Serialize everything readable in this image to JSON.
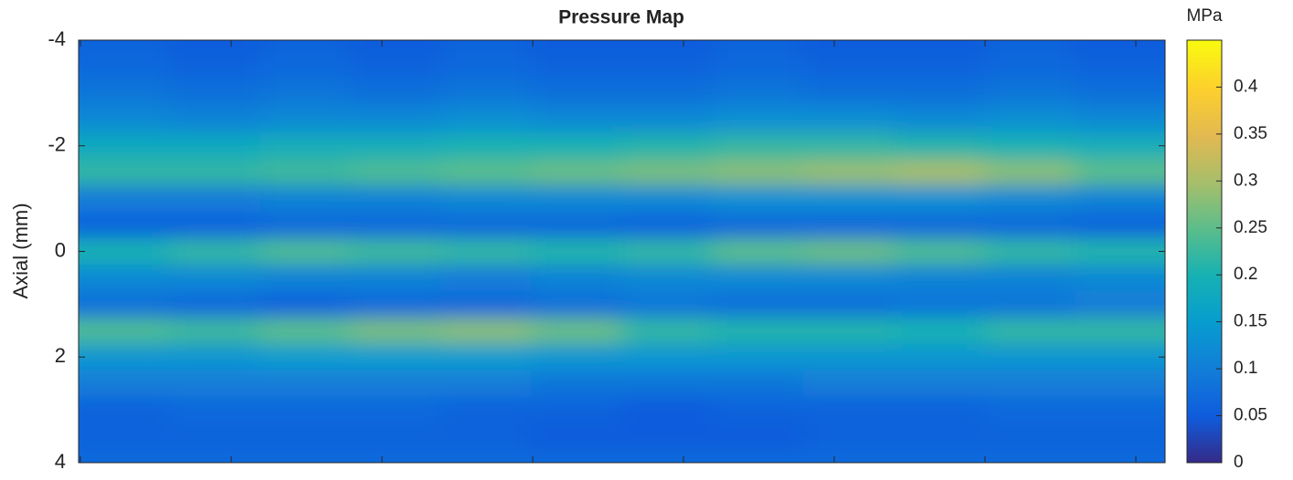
{
  "chart_data": {
    "type": "heatmap",
    "title": "Pressure Map",
    "ylabel": "Axial (mm)",
    "colorbar_label": "MPa",
    "colormap": "parula",
    "categories": [
      null,
      null,
      null,
      null,
      null,
      null,
      null,
      null,
      null,
      null,
      null,
      null
    ],
    "y": [
      -4,
      -3.5,
      -3,
      -2.5,
      -2,
      -1.5,
      -1,
      -0.5,
      0,
      0.5,
      1,
      1.5,
      2,
      2.5,
      3,
      3.5,
      4
    ],
    "values": [
      [
        0.06,
        0.05,
        0.06,
        0.05,
        0.06,
        0.05,
        0.05,
        0.06,
        0.05,
        0.05,
        0.06,
        0.05
      ],
      [
        0.07,
        0.06,
        0.07,
        0.06,
        0.07,
        0.06,
        0.06,
        0.07,
        0.06,
        0.06,
        0.07,
        0.06
      ],
      [
        0.09,
        0.08,
        0.09,
        0.08,
        0.09,
        0.08,
        0.08,
        0.09,
        0.08,
        0.08,
        0.09,
        0.08
      ],
      [
        0.12,
        0.11,
        0.12,
        0.12,
        0.13,
        0.12,
        0.12,
        0.13,
        0.13,
        0.12,
        0.13,
        0.12
      ],
      [
        0.18,
        0.18,
        0.19,
        0.19,
        0.2,
        0.2,
        0.21,
        0.22,
        0.22,
        0.21,
        0.2,
        0.19
      ],
      [
        0.22,
        0.22,
        0.23,
        0.24,
        0.25,
        0.26,
        0.27,
        0.28,
        0.29,
        0.3,
        0.28,
        0.25
      ],
      [
        0.1,
        0.1,
        0.11,
        0.11,
        0.12,
        0.12,
        0.12,
        0.13,
        0.13,
        0.13,
        0.12,
        0.11
      ],
      [
        0.06,
        0.06,
        0.07,
        0.07,
        0.07,
        0.07,
        0.06,
        0.07,
        0.07,
        0.07,
        0.07,
        0.06
      ],
      [
        0.2,
        0.22,
        0.24,
        0.23,
        0.22,
        0.21,
        0.22,
        0.25,
        0.26,
        0.24,
        0.22,
        0.21
      ],
      [
        0.12,
        0.12,
        0.11,
        0.11,
        0.1,
        0.11,
        0.12,
        0.12,
        0.12,
        0.11,
        0.11,
        0.12
      ],
      [
        0.08,
        0.07,
        0.06,
        0.07,
        0.07,
        0.08,
        0.09,
        0.08,
        0.08,
        0.09,
        0.09,
        0.1
      ],
      [
        0.24,
        0.23,
        0.25,
        0.27,
        0.28,
        0.26,
        0.22,
        0.21,
        0.21,
        0.2,
        0.22,
        0.22
      ],
      [
        0.14,
        0.14,
        0.15,
        0.15,
        0.15,
        0.14,
        0.14,
        0.14,
        0.14,
        0.14,
        0.14,
        0.14
      ],
      [
        0.1,
        0.1,
        0.1,
        0.1,
        0.1,
        0.09,
        0.09,
        0.09,
        0.1,
        0.1,
        0.1,
        0.1
      ],
      [
        0.06,
        0.07,
        0.07,
        0.07,
        0.06,
        0.06,
        0.05,
        0.06,
        0.06,
        0.06,
        0.07,
        0.07
      ],
      [
        0.06,
        0.06,
        0.06,
        0.06,
        0.06,
        0.05,
        0.05,
        0.05,
        0.06,
        0.06,
        0.06,
        0.06
      ],
      [
        0.07,
        0.07,
        0.07,
        0.07,
        0.07,
        0.07,
        0.07,
        0.07,
        0.07,
        0.07,
        0.07,
        0.07
      ]
    ],
    "ylim": [
      -4,
      4
    ],
    "yticks": [
      -4,
      -2,
      0,
      2,
      4
    ],
    "y_reversed": true,
    "zlim": [
      0,
      0.45
    ],
    "zticks": [
      0,
      0.05,
      0.1,
      0.15,
      0.2,
      0.25,
      0.3,
      0.35,
      0.4
    ]
  }
}
